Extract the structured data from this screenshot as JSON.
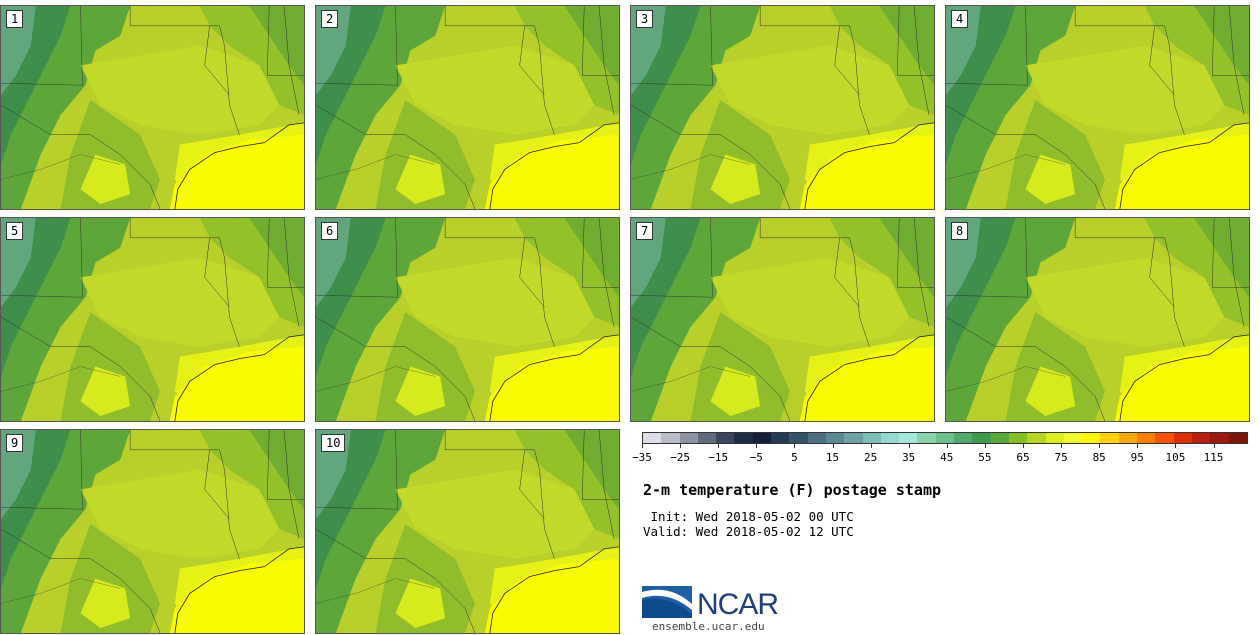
{
  "panels": [
    "1",
    "2",
    "3",
    "4",
    "5",
    "6",
    "7",
    "8",
    "9",
    "10"
  ],
  "legend": {
    "colors": [
      "#dcdde6",
      "#babdca",
      "#8d92a4",
      "#606a80",
      "#3a4660",
      "#1f2c48",
      "#142039",
      "#243a56",
      "#34546b",
      "#4a6f83",
      "#5b8896",
      "#6fa1a6",
      "#80bcb7",
      "#95dad0",
      "#a6e8d8",
      "#8bd3ad",
      "#6cbf8a",
      "#53a86a",
      "#3f9a4c",
      "#5aa83a",
      "#86be28",
      "#b7d624",
      "#dcee1e",
      "#f4f72a",
      "#fff500",
      "#ffd200",
      "#ffaa00",
      "#ff7d00",
      "#f65200",
      "#d92e00",
      "#b81f10",
      "#9a1a10",
      "#7a1508"
    ],
    "tick_labels": [
      "−35",
      "−25",
      "−15",
      "−5",
      "5",
      "15",
      "25",
      "35",
      "45",
      "55",
      "65",
      "75",
      "85",
      "95",
      "105",
      "115"
    ]
  },
  "title": "2-m temperature (F) postage stamp",
  "init": " Init: Wed 2018-05-02 00 UTC",
  "valid": "Valid: Wed 2018-05-02 12 UTC",
  "logo": {
    "text": "NCAR",
    "url": "ensemble.ucar.edu"
  }
}
